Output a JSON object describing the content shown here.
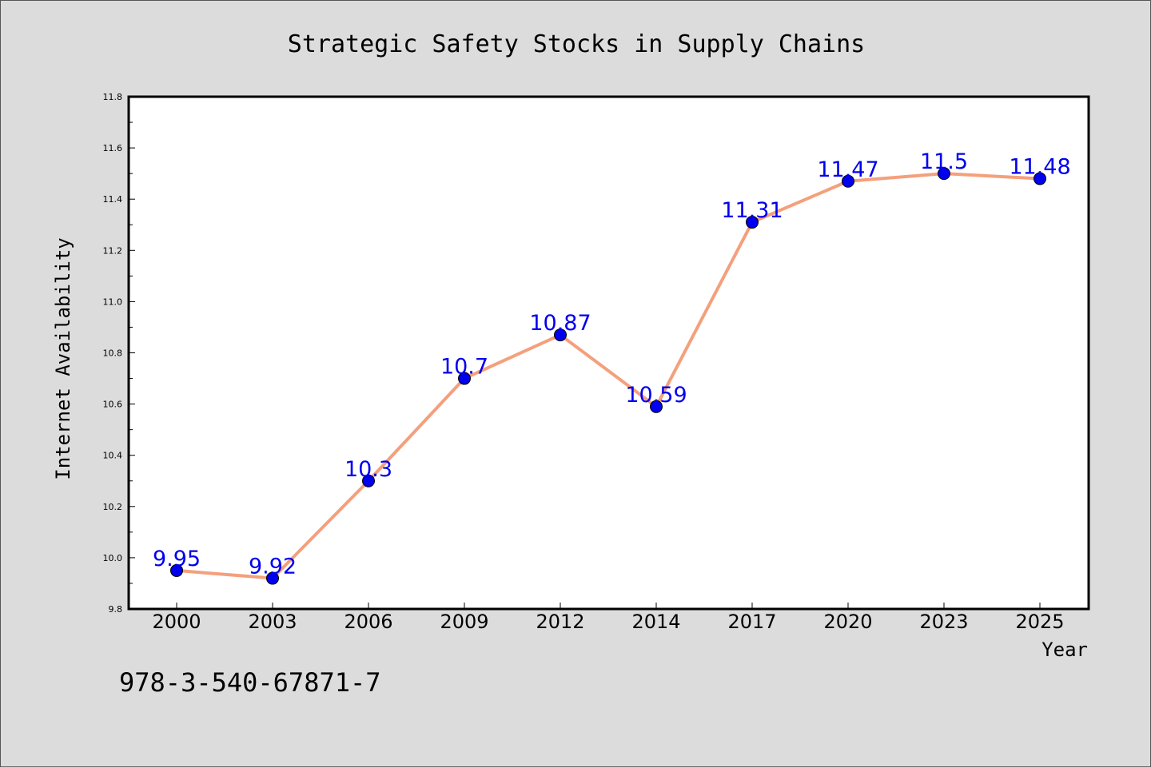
{
  "chart_data": {
    "type": "line",
    "title": "Strategic Safety Stocks in Supply Chains",
    "xlabel": "Year",
    "ylabel": "Internet Availability",
    "categories": [
      "2000",
      "2003",
      "2006",
      "2009",
      "2012",
      "2014",
      "2017",
      "2020",
      "2023",
      "2025"
    ],
    "series": [
      {
        "values": [
          9.95,
          9.92,
          10.3,
          10.7,
          10.87,
          10.59,
          11.31,
          11.47,
          11.5,
          11.48
        ],
        "data_labels": [
          "9.95",
          "9.92",
          "10.3",
          "10.7",
          "10.87",
          "10.59",
          "11.31",
          "11.47",
          "11.5",
          "11.48"
        ],
        "line_color": "#f4a07c",
        "marker_color": "#0000ee",
        "label_color": "#0000ee"
      }
    ],
    "ylim": [
      9.8,
      11.8
    ],
    "y_ticks": [
      "9.8",
      "10.0",
      "10.2",
      "10.4",
      "10.6",
      "10.8",
      "11.0",
      "11.2",
      "11.4",
      "11.6",
      "11.8"
    ],
    "grid": false,
    "legend": "none"
  },
  "annotation": "978-3-540-67871-7",
  "colors": {
    "background": "#dcdcdc",
    "plot_background": "#ffffff",
    "axis": "#000000"
  }
}
